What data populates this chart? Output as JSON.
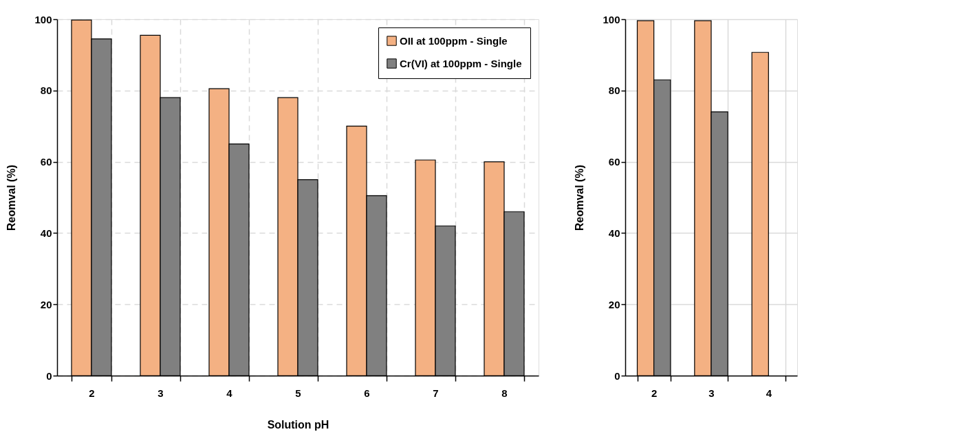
{
  "chart_data": [
    {
      "type": "bar",
      "xlabel": "Solution pH",
      "ylabel": "Reomval (%)",
      "categories": [
        "2",
        "3",
        "4",
        "5",
        "6",
        "7",
        "8"
      ],
      "series": [
        {
          "name": "OII at 100ppm - Single",
          "color": "#f4b183",
          "values": [
            99.8,
            95.5,
            80.5,
            78,
            70,
            60.5,
            60
          ]
        },
        {
          "name": "Cr(VI) at 100ppm - Single",
          "color": "#808080",
          "values": [
            94.5,
            78,
            65,
            55,
            50.5,
            42,
            46
          ]
        }
      ],
      "ylim": [
        0,
        100
      ],
      "yticks": [
        0,
        20,
        40,
        60,
        80,
        100
      ],
      "grid": true,
      "legend": "top right"
    },
    {
      "type": "bar",
      "ylabel": "Reomval (%)",
      "categories": [
        "2",
        "3",
        "4"
      ],
      "series": [
        {
          "color": "#f4b183",
          "values": [
            99.6,
            99.6,
            90.7
          ]
        },
        {
          "color": "#808080",
          "values": [
            83,
            74,
            null
          ]
        }
      ],
      "ylim": [
        0,
        100
      ],
      "yticks": [
        0,
        20,
        40,
        60,
        80,
        100
      ],
      "grid": true
    }
  ]
}
